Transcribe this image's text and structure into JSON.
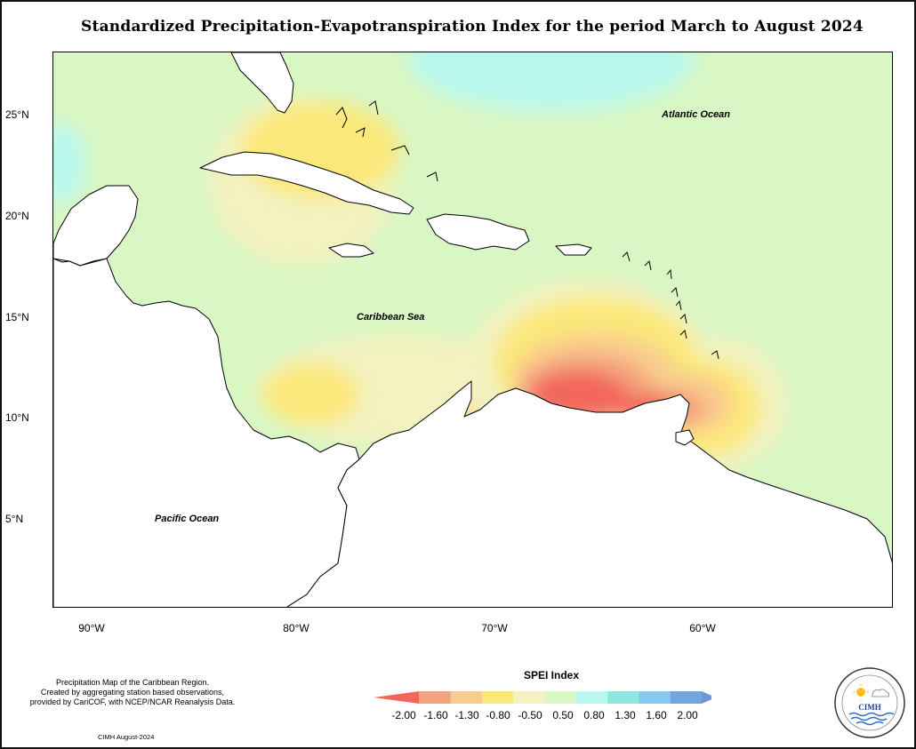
{
  "title": "Standardized Precipitation-Evapotranspiration Index for the period March to August 2024",
  "map": {
    "lat_labels": [
      "25°N",
      "20°N",
      "15°N",
      "10°N",
      "5°N"
    ],
    "lon_labels": [
      "90°W",
      "80°W",
      "70°W",
      "60°W"
    ],
    "ocean_labels": {
      "atlantic": "Atlantic Ocean",
      "caribbean": "Caribbean Sea",
      "pacific": "Pacific Ocean"
    },
    "extent": {
      "lon": [
        -92,
        -50
      ],
      "lat": [
        0.5,
        28
      ]
    }
  },
  "legend": {
    "title": "SPEI Index",
    "ticks": [
      "-2.00",
      "-1.60",
      "-1.30",
      "-0.80",
      "-0.50",
      "0.50",
      "0.80",
      "1.30",
      "1.60",
      "2.00"
    ],
    "colors": [
      "#f2665c",
      "#f4a27e",
      "#f9cc8d",
      "#fbe87a",
      "#f3f2c0",
      "#d9f7c4",
      "#b9f8ee",
      "#8fe8e0",
      "#86c8f6",
      "#72a6de",
      "#6e95d8"
    ]
  },
  "footer": {
    "line1": "Precipitation Map of the Caribbean Region.",
    "line2": "Created by aggregating station based observations,",
    "line3": "provided by CariCOF, with NCEP/NCAR Reanalysis Data.",
    "credit": "CIMH August-2024"
  },
  "logo": {
    "text": "CIMH"
  }
}
